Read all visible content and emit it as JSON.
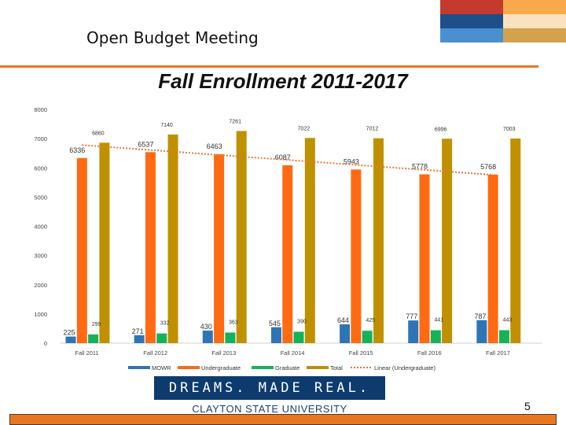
{
  "slide": {
    "meeting_title": "Open Budget Meeting",
    "logo_line1": "DREAMS. MADE REAL.",
    "logo_line2": "CLAYTON STATE UNIVERSITY",
    "slide_number": "5"
  },
  "colors": {
    "accent_orange": "#e87722",
    "corner_red": "#c43b2e",
    "corner_orange": "#f7a94b",
    "corner_navy": "#1f4f8a",
    "corner_blue": "#4a90d0",
    "corner_tan": "#d4a24c",
    "banner_navy": "#0d3b6e"
  },
  "chart_data": {
    "type": "bar",
    "title": "Fall Enrollment 2011-2017",
    "categories": [
      "Fall 2011",
      "Fall 2012",
      "Fall 2013",
      "Fall 2014",
      "Fall 2015",
      "Fall 2016",
      "Fall 2017"
    ],
    "series": [
      {
        "name": "MOWR",
        "color": "#2e75b6",
        "values": [
          225,
          271,
          430,
          545,
          644,
          777,
          787
        ]
      },
      {
        "name": "Undergraduate",
        "color": "#ff6a13",
        "values": [
          6336,
          6537,
          6463,
          6087,
          5943,
          5778,
          5768
        ]
      },
      {
        "name": "Graduate",
        "color": "#14b35a",
        "values": [
          299,
          332,
          363,
          390,
          425,
          441,
          443
        ]
      },
      {
        "name": "Total",
        "color": "#bf9000",
        "values": [
          6860,
          7140,
          7261,
          7022,
          7012,
          6996,
          7003
        ]
      }
    ],
    "trendline": {
      "name": "Linear (Undergraduate)",
      "color": "#e07b3c",
      "start": 6780,
      "end": 5760
    },
    "ylim": [
      0,
      8000
    ],
    "yticks": [
      0,
      1000,
      2000,
      3000,
      4000,
      5000,
      6000,
      7000,
      8000
    ],
    "legend_position": "bottom",
    "grid": false
  }
}
